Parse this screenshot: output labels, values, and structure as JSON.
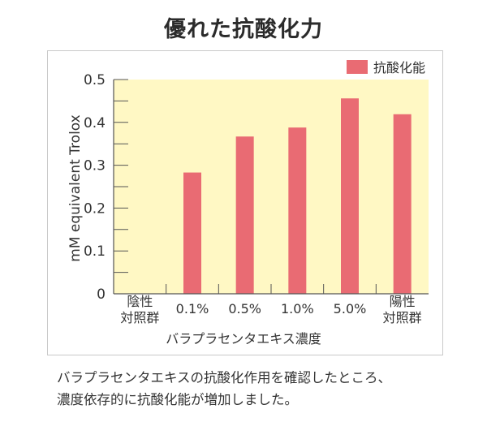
{
  "header": {
    "title": "優れた抗酸化力"
  },
  "chart_data": {
    "type": "bar",
    "title": "優れた抗酸化力",
    "ylabel": "mM equivalent Trolox",
    "xlabel": "バラプラセンタエキス濃度",
    "ylim": [
      0,
      0.5
    ],
    "yticks": [
      "0",
      "0.1",
      "0.2",
      "0.3",
      "0.4",
      "0.5"
    ],
    "ytick_values": [
      0,
      0.1,
      0.2,
      0.3,
      0.4,
      0.5
    ],
    "categories": [
      [
        "陰性",
        "対照群"
      ],
      [
        "0.1%"
      ],
      [
        "0.5%"
      ],
      [
        "1.0%"
      ],
      [
        "5.0%"
      ],
      [
        "陽性",
        "対照群"
      ]
    ],
    "series": [
      {
        "name": "抗酸化能",
        "values": [
          0,
          0.283,
          0.367,
          0.388,
          0.456,
          0.419
        ]
      }
    ],
    "legend_position": "top-right",
    "grid": false,
    "colors": {
      "bar": "#e96b73",
      "plot_background": "#fff8c4",
      "axis": "#555555"
    }
  },
  "caption": {
    "lines": [
      "バラプラセンタエキスの抗酸化作用を確認したところ、",
      "濃度依存的に抗酸化能が増加しました。"
    ]
  }
}
